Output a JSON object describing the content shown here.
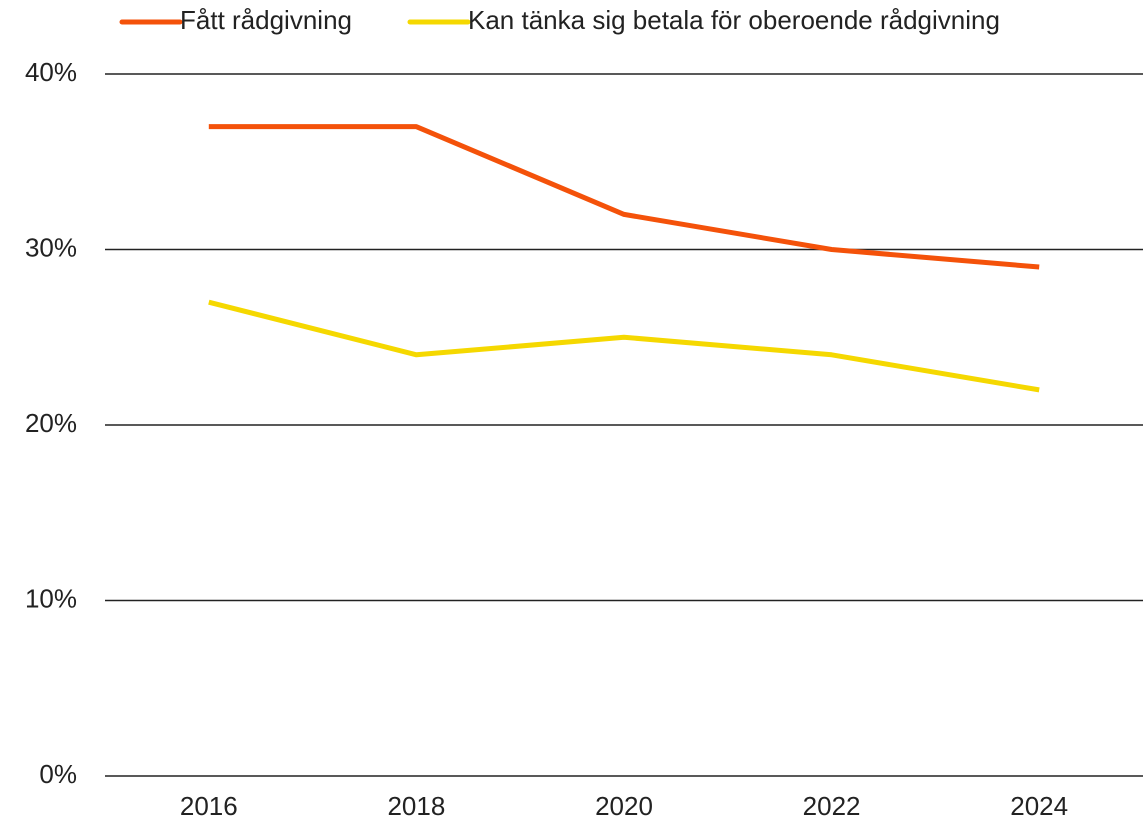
{
  "chart_data": {
    "type": "line",
    "categories": [
      "2016",
      "2018",
      "2020",
      "2022",
      "2024"
    ],
    "series": [
      {
        "name": "Fått rådgivning",
        "color": "#f4520a",
        "values": [
          37,
          37,
          32,
          30,
          29
        ]
      },
      {
        "name": "Kan tänka sig betala för oberoende rådgivning",
        "color": "#f5d800",
        "values": [
          27,
          24,
          25,
          24,
          22
        ]
      }
    ],
    "ylim": [
      0,
      40
    ],
    "yticks": [
      {
        "value": 0,
        "label": "0%"
      },
      {
        "value": 10,
        "label": "10%"
      },
      {
        "value": 20,
        "label": "20%"
      },
      {
        "value": 30,
        "label": "30%"
      },
      {
        "value": 40,
        "label": "40%"
      }
    ],
    "grid": true,
    "legend": "top"
  }
}
